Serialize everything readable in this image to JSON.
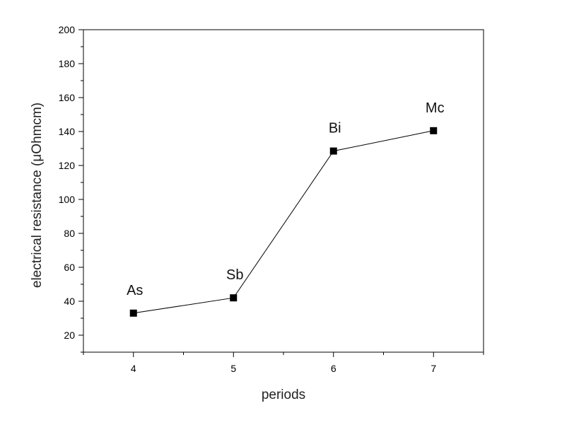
{
  "chart_data": {
    "type": "line",
    "title": "",
    "xlabel": "periods",
    "ylabel": "electrical resistance (μOhmcm)",
    "xlim": [
      3.5,
      7.5
    ],
    "ylim": [
      10,
      200
    ],
    "x_ticks": [
      4,
      5,
      6,
      7
    ],
    "y_ticks": [
      20,
      40,
      60,
      80,
      100,
      120,
      140,
      160,
      180,
      200
    ],
    "grid": false,
    "legend": "none",
    "marker": "square",
    "line_color": "#000000",
    "series": [
      {
        "x": [
          4,
          5,
          6,
          7
        ],
        "values": [
          33,
          42,
          128.5,
          140.5
        ],
        "point_labels": [
          "As",
          "Sb",
          "Bi",
          "Mc"
        ]
      }
    ]
  }
}
